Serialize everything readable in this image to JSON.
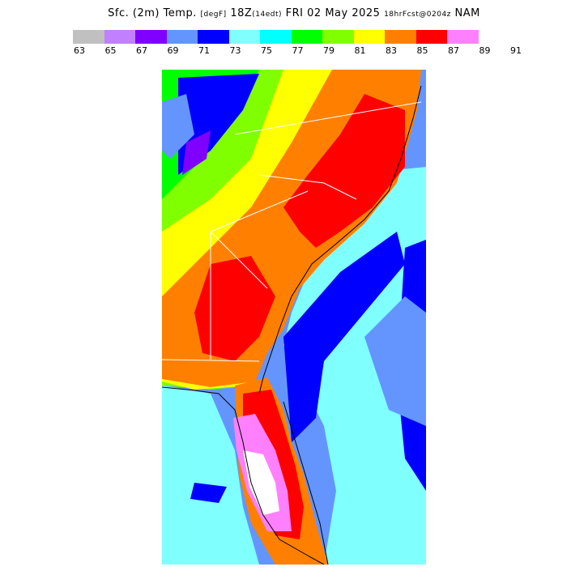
{
  "title": {
    "main": "Sfc. (2m) Temp.",
    "units": "[degF]",
    "valid": "18Z",
    "local": "(14edt)",
    "date": "FRI 02 May 2025",
    "fcst": "18hrFcst@0204z",
    "model": "NAM"
  },
  "colorbar": {
    "colors": [
      "#c0c0c0",
      "#c080ff",
      "#8000ff",
      "#6495ff",
      "#0000ff",
      "#80ffff",
      "#00ffff",
      "#00ff00",
      "#80ff00",
      "#ffff00",
      "#ff8000",
      "#ff0000",
      "#ff80ff"
    ],
    "labels": [
      "63",
      "65",
      "67",
      "69",
      "71",
      "73",
      "75",
      "77",
      "79",
      "81",
      "83",
      "85",
      "87",
      "89",
      "91"
    ]
  },
  "map": {
    "region": "Southeast US",
    "field_colors": {
      "ocean_cool": "#0000ff",
      "ocean_mid": "#6495ff",
      "ocean_warm": "#80ffff",
      "land_hot": "#ff0000",
      "land_warm": "#ff8000",
      "land_mild": "#ffff00",
      "land_cool": "#80ff00",
      "peak": "#ff80ff",
      "max": "#ffffff"
    }
  }
}
